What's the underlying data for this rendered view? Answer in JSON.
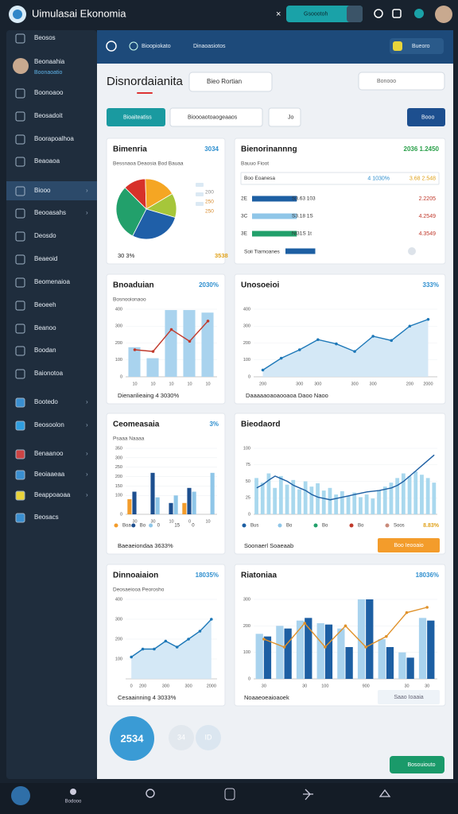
{
  "app": {
    "title": "Uimulasai Ekonomia",
    "search": "Gsoootoh"
  },
  "sidebar": {
    "items": [
      "Beosos",
      "Beonaahia",
      "Boonoaoo",
      "Beosadoit",
      "Boorapoalhoa",
      "Beaoaoa",
      "Biooo",
      "Beooasahs",
      "Deosdo",
      "Beaeoid",
      "Beomenaioa",
      "Beoeeh",
      "Beanoo",
      "Boodan",
      "Baionotoa",
      "Bootedo",
      "Beosoolon",
      "Benaanoo",
      "Beoiaaeaa",
      "Beappoaoaa",
      "Beosacs"
    ],
    "profile_sub": "Boonaoatio"
  },
  "header": {
    "breadcrumb": [
      "Bioopiokato",
      "Dinaoasiotos"
    ],
    "button": "Bueoro"
  },
  "page": {
    "title": "Disnordaianita",
    "select": "Bieo Rortian",
    "search": "Bonooo",
    "filters": [
      "Bioaiteatiss",
      "Bioooaotoaogeaaos",
      "Jo"
    ],
    "action": "Booo"
  },
  "panels": [
    {
      "type": "pie",
      "title": "Bimenria",
      "badge": "3034",
      "subtitle": "Bessnaoa Deaosia Bod Bauaa",
      "values": [
        12,
        17,
        13,
        28,
        30
      ],
      "colors": [
        "#d7312a",
        "#f5a623",
        "#a6c63a",
        "#1f5fa8",
        "#22a06b"
      ],
      "legend": [
        "200",
        "250",
        "250"
      ],
      "footer": "30 3%",
      "footer_value": "3538"
    },
    {
      "type": "hbar",
      "title": "Bienorinannng",
      "badge": "2036 1.2450",
      "subtitle": "Bauuo Fioot",
      "header": [
        "Boo Eoanesa",
        "4 1030%",
        "3.68 2.548"
      ],
      "categories": [
        "2E",
        "3C",
        "3E",
        "Soii Tiarnoanes"
      ],
      "values": [
        45,
        45,
        45,
        30
      ],
      "xlim": [
        0,
        60
      ],
      "colors": [
        "#1d5fa3",
        "#8fc6e8",
        "#22a06b",
        "#1d5fa3"
      ],
      "notes": [
        "S3.63 103",
        "S3.18 1S",
        "Ni31S 1t"
      ],
      "right": [
        "2.2205",
        "4.2549",
        "4.3549"
      ]
    },
    {
      "type": "plot",
      "title": "Bnoaduian",
      "badge": "2030%",
      "subtitle": "Bosnooionaoo",
      "ylim": [
        0,
        400
      ],
      "yticks": [
        0,
        100,
        200,
        300,
        400
      ],
      "categories": [
        "10",
        "10",
        "10",
        "10",
        "10"
      ],
      "series": [
        {
          "color": "#a9d3ee",
          "values": [
            175,
            110,
            395,
            395,
            380
          ]
        }
      ],
      "line": {
        "color": "#c0392b",
        "values": [
          160,
          150,
          280,
          210,
          330
        ]
      },
      "footer": "Dienanlieaing 4 3030%"
    },
    {
      "type": "plot",
      "title": "Unosoeioi",
      "badge": "333%",
      "area": true,
      "ylim": [
        0,
        400
      ],
      "yticks": [
        0,
        100,
        200,
        300,
        400
      ],
      "categories": [
        "200",
        null,
        "300",
        "300",
        null,
        "300",
        "300",
        null,
        "200",
        "2000"
      ],
      "line": {
        "color": "#1d78b8",
        "values": [
          40,
          110,
          160,
          220,
          195,
          150,
          240,
          215,
          300,
          340
        ]
      },
      "footer": "Daaaaaoaoaooaoa Daoo Naoo"
    },
    {
      "type": "plot",
      "title": "Ceomeasaia",
      "badge": "3%",
      "subtitle": "Psaaa Naaaa",
      "ylim": [
        0,
        350
      ],
      "yticks": [
        0,
        100,
        150,
        200,
        250,
        300,
        350
      ],
      "categories": [
        "30",
        "30",
        "10",
        "0",
        "10"
      ],
      "series": [
        {
          "color": "#f39c2b",
          "values": [
            80,
            0,
            0,
            60,
            0
          ]
        },
        {
          "color": "#1d4f8f",
          "values": [
            120,
            220,
            60,
            140,
            0
          ]
        },
        {
          "color": "#8fc6e8",
          "values": [
            0,
            90,
            100,
            120,
            220
          ]
        }
      ],
      "legend": [
        "Boa",
        "Bo",
        "0",
        "15",
        "0"
      ],
      "footer": "Baeaeiondaa 3633%"
    },
    {
      "type": "plot",
      "title": "Bieodaord",
      "ylim": [
        0,
        100
      ],
      "yticks": [
        0,
        25,
        50,
        75,
        100
      ],
      "series": [
        {
          "color": "#a9d8ee",
          "values": [
            55,
            48,
            62,
            40,
            58,
            45,
            52,
            38,
            50,
            42,
            47,
            36,
            40,
            30,
            35,
            28,
            33,
            26,
            30,
            24,
            36,
            42,
            48,
            55,
            62,
            58,
            65,
            60,
            55,
            48
          ]
        }
      ],
      "line": {
        "color": "#1d5fa3",
        "values": [
          40,
          45,
          52,
          58,
          54,
          50,
          44,
          40,
          36,
          30,
          26,
          24,
          22,
          24,
          26,
          28,
          30,
          32,
          34,
          35,
          36,
          38,
          40,
          44,
          50,
          58,
          66,
          74,
          82,
          90
        ]
      },
      "legend": [
        "Bus",
        "Bo",
        "Bo",
        "Bo",
        "Soos"
      ],
      "legend_colors": [
        "#1d5fa3",
        "#8fc6e8",
        "#22a06b",
        "#c0392b",
        "#c98a7a"
      ],
      "footer_value": "8.83%",
      "footer": "Soonaerl Soaeaab",
      "button": "Boo Ieooaio"
    },
    {
      "type": "plot",
      "title": "Dinnoaiaion",
      "badge": "18035%",
      "subtitle": "Deosaeiooa Peorosho",
      "area": true,
      "ylim": [
        0,
        400
      ],
      "yticks": [
        100,
        200,
        300,
        400
      ],
      "categories": [
        "0",
        "200",
        null,
        "300",
        null,
        "300",
        null,
        "2000"
      ],
      "line": {
        "color": "#1d78b8",
        "values": [
          110,
          150,
          150,
          190,
          160,
          200,
          240,
          300
        ]
      },
      "footer": "Cesaainning 4 3033%"
    },
    {
      "type": "plot",
      "title": "Riatoniaa",
      "badge": "18036%",
      "ylim": [
        0,
        300
      ],
      "yticks": [
        0,
        100,
        200,
        300
      ],
      "categories": [
        "30",
        null,
        "30",
        "100",
        null,
        "900",
        null,
        "30",
        "30"
      ],
      "series": [
        {
          "color": "#a9d3ee",
          "values": [
            170,
            200,
            220,
            210,
            190,
            300,
            150,
            100,
            230
          ]
        },
        {
          "color": "#1d5fa3",
          "values": [
            160,
            190,
            230,
            205,
            120,
            300,
            120,
            80,
            220
          ]
        }
      ],
      "line": {
        "color": "#e0922b",
        "values": [
          150,
          120,
          210,
          120,
          200,
          120,
          160,
          250,
          270
        ]
      },
      "footer": "Noaaeoeaioaoek",
      "button": "Saao Ioaaia"
    }
  ],
  "bottom": {
    "circles": [
      "2534",
      "34",
      "ID"
    ],
    "button": "Bosouiouto",
    "nav": "Bodooo"
  }
}
